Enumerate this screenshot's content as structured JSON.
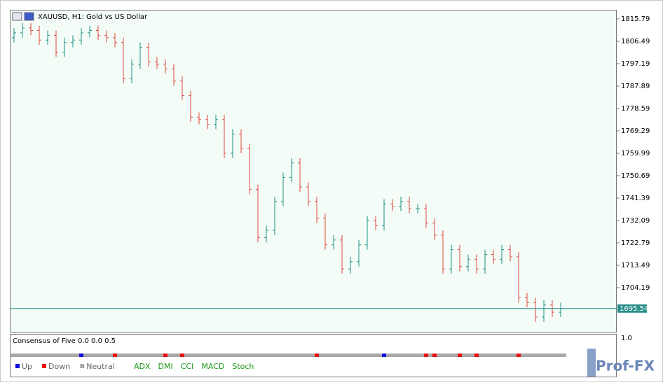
{
  "chart_data": {
    "type": "ohlc",
    "title": "XAUUSD, H1:  Gold vs US Dollar",
    "open": [
      1808,
      1810,
      1812,
      1811,
      1807,
      1809,
      1802,
      1806,
      1807,
      1810,
      1811,
      1809,
      1808,
      1806,
      1791,
      1797,
      1804,
      1798,
      1797,
      1795,
      1790,
      1784,
      1775,
      1774,
      1772,
      1774,
      1760,
      1768,
      1762,
      1745,
      1725,
      1728,
      1740,
      1750,
      1756,
      1746,
      1740,
      1733,
      1722,
      1724,
      1712,
      1715,
      1722,
      1732,
      1730,
      1739,
      1738,
      1740,
      1737,
      1737,
      1731,
      1726,
      1712,
      1720,
      1713,
      1716,
      1712,
      1718,
      1716,
      1720,
      1717,
      1700,
      1698,
      1692,
      1697,
      1694
    ],
    "high": [
      1812,
      1814,
      1814,
      1813,
      1811,
      1811,
      1808,
      1809,
      1812,
      1813,
      1813,
      1811,
      1810,
      1808,
      1799,
      1806,
      1806,
      1800,
      1799,
      1797,
      1792,
      1786,
      1777,
      1776,
      1776,
      1776,
      1770,
      1770,
      1764,
      1747,
      1730,
      1742,
      1752,
      1758,
      1758,
      1748,
      1742,
      1735,
      1726,
      1726,
      1717,
      1724,
      1734,
      1734,
      1741,
      1741,
      1742,
      1742,
      1739,
      1739,
      1733,
      1728,
      1722,
      1722,
      1718,
      1718,
      1720,
      1720,
      1722,
      1722,
      1719,
      1702,
      1700,
      1699,
      1699,
      1698
    ],
    "low": [
      1806,
      1808,
      1809,
      1805,
      1805,
      1800,
      1800,
      1804,
      1805,
      1808,
      1807,
      1806,
      1804,
      1789,
      1789,
      1795,
      1796,
      1795,
      1793,
      1788,
      1782,
      1773,
      1772,
      1770,
      1770,
      1758,
      1758,
      1760,
      1743,
      1723,
      1723,
      1726,
      1738,
      1748,
      1744,
      1738,
      1731,
      1720,
      1720,
      1710,
      1710,
      1713,
      1720,
      1728,
      1728,
      1736,
      1736,
      1735,
      1735,
      1729,
      1724,
      1710,
      1710,
      1711,
      1711,
      1710,
      1710,
      1714,
      1714,
      1715,
      1698,
      1696,
      1690,
      1690,
      1692,
      1692
    ],
    "close": [
      1810,
      1812,
      1811,
      1807,
      1809,
      1802,
      1806,
      1807,
      1810,
      1811,
      1809,
      1808,
      1806,
      1791,
      1797,
      1804,
      1798,
      1797,
      1795,
      1790,
      1784,
      1775,
      1774,
      1772,
      1774,
      1760,
      1768,
      1762,
      1745,
      1725,
      1728,
      1740,
      1750,
      1756,
      1746,
      1740,
      1733,
      1722,
      1724,
      1712,
      1715,
      1722,
      1732,
      1730,
      1739,
      1738,
      1740,
      1737,
      1737,
      1731,
      1726,
      1712,
      1720,
      1713,
      1716,
      1712,
      1718,
      1716,
      1720,
      1717,
      1700,
      1698,
      1692,
      1697,
      1694,
      1695.54
    ],
    "up_color": "#1f8f86",
    "down_color": "#e2473f",
    "ylim": [
      1685.88,
      1819.28
    ],
    "yticks": [
      1815.79,
      1806.49,
      1797.19,
      1787.89,
      1778.59,
      1769.29,
      1759.99,
      1750.69,
      1741.39,
      1732.09,
      1722.79,
      1713.49,
      1704.19
    ],
    "current_price": 1695.54,
    "current_color": "#2a8f8a"
  },
  "indicator": {
    "title": "Consensus of Five 0.0 0.0 0.5",
    "axis_label": "1.0",
    "legend": [
      {
        "name": "Up",
        "color": "#1010e0"
      },
      {
        "name": "Down",
        "color": "#e81010"
      },
      {
        "name": "Neutral",
        "color": "#a8a8a8"
      }
    ],
    "states": [
      "Neutral",
      "Neutral",
      "Neutral",
      "Neutral",
      "Neutral",
      "Neutral",
      "Neutral",
      "Neutral",
      "Up",
      "Neutral",
      "Neutral",
      "Neutral",
      "Down",
      "Neutral",
      "Neutral",
      "Neutral",
      "Neutral",
      "Neutral",
      "Down",
      "Neutral",
      "Down",
      "Neutral",
      "Neutral",
      "Neutral",
      "Neutral",
      "Neutral",
      "Neutral",
      "Neutral",
      "Neutral",
      "Neutral",
      "Neutral",
      "Neutral",
      "Neutral",
      "Neutral",
      "Neutral",
      "Neutral",
      "Down",
      "Neutral",
      "Neutral",
      "Neutral",
      "Neutral",
      "Neutral",
      "Neutral",
      "Neutral",
      "Up",
      "Neutral",
      "Neutral",
      "Neutral",
      "Neutral",
      "Down",
      "Down",
      "Neutral",
      "Neutral",
      "Down",
      "Neutral",
      "Down",
      "Neutral",
      "Neutral",
      "Neutral",
      "Neutral",
      "Down",
      "Neutral",
      "Neutral",
      "Neutral",
      "Neutral",
      "Neutral"
    ],
    "buttons": [
      "ADX",
      "DMI",
      "CCI",
      "MACD",
      "Stoch"
    ]
  },
  "logo": "Prof-FX"
}
